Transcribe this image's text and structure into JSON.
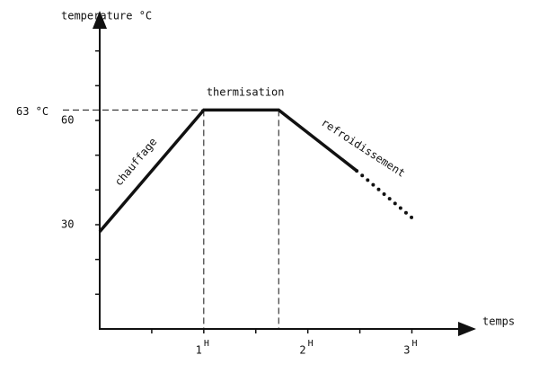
{
  "chart_data": {
    "type": "line",
    "y_label": "temperature °C",
    "x_label": "temps",
    "xlim": [
      0,
      3.6
    ],
    "ylim": [
      0,
      90
    ],
    "yticks": [
      30,
      60
    ],
    "minor_yticks": [
      10,
      20,
      40,
      50,
      70,
      80
    ],
    "xticks": [
      {
        "value": 1,
        "label": "1",
        "superscript": "H"
      },
      {
        "value": 2,
        "label": "2",
        "superscript": "H"
      },
      {
        "value": 3,
        "label": "3",
        "superscript": "H"
      }
    ],
    "minor_xticks": [
      0.5,
      1.5,
      2.5
    ],
    "reference_line": {
      "value": 63,
      "label": "63 °C"
    },
    "series": [
      {
        "x": [
          0,
          1,
          1.72,
          2.47
        ],
        "values": [
          28,
          63,
          63,
          45.5
        ],
        "color": "#111111",
        "style": "solid"
      },
      {
        "x": [
          2.47,
          3.0
        ],
        "values": [
          45.5,
          32
        ],
        "color": "#111111",
        "style": "dotted"
      }
    ],
    "phase_labels": [
      {
        "text": "chauffage",
        "x": 0.35,
        "y": 48,
        "angle": -50
      },
      {
        "text": "thermisation",
        "x": 1.4,
        "y": 68,
        "angle": 0
      },
      {
        "text": "refroidissement",
        "x": 2.53,
        "y": 52,
        "angle": 33
      }
    ],
    "phase_boundaries": [
      1,
      1.72
    ]
  }
}
